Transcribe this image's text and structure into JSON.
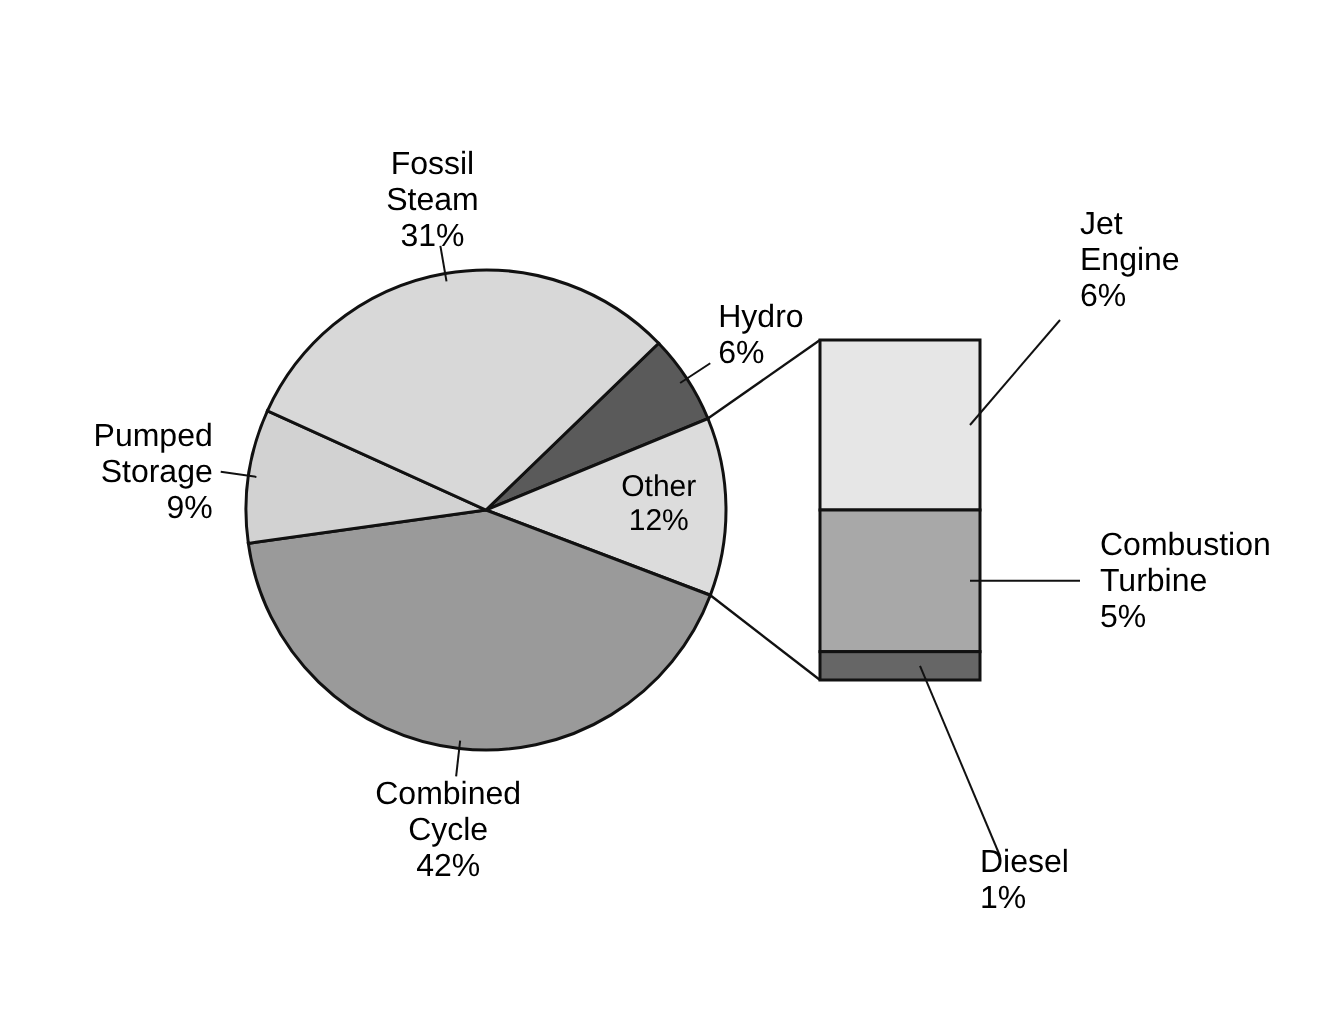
{
  "chart_data": [
    {
      "type": "pie",
      "categories": [
        "Hydro",
        "Other",
        "Combined Cycle",
        "Pumped Storage",
        "Fossil Steam"
      ],
      "values": [
        6,
        12,
        42,
        9,
        31
      ],
      "colors": [
        "#5a5a5a",
        "#dcdcdc",
        "#9a9a9a",
        "#d2d2d2",
        "#d8d8d8"
      ],
      "value_labels": [
        "6%",
        "12%",
        "42%",
        "9%",
        "31%"
      ]
    },
    {
      "type": "bar",
      "stacked": true,
      "categories": [
        null
      ],
      "series": [
        {
          "name": "Jet Engine",
          "color": "#e6e6e6",
          "values": [
            6
          ],
          "value_labels": [
            "6%"
          ]
        },
        {
          "name": "Combustion Turbine",
          "color": "#a8a8a8",
          "values": [
            5
          ],
          "value_labels": [
            "5%"
          ]
        },
        {
          "name": "Diesel",
          "color": "#666666",
          "values": [
            1
          ],
          "value_labels": [
            "1%"
          ]
        }
      ]
    }
  ]
}
